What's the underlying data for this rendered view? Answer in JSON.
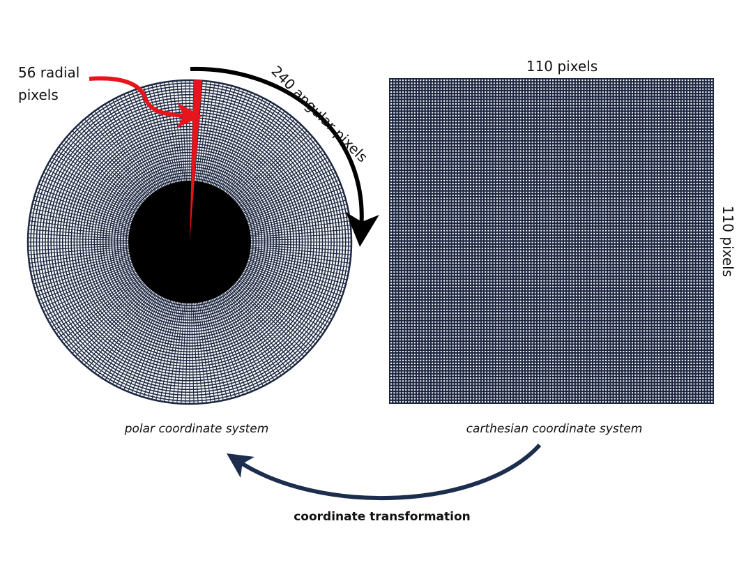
{
  "labels": {
    "radial_count": "56 radial",
    "radial_unit": "pixels",
    "angular": "240 angular pixels",
    "width": "110 pixels",
    "height": "110 pixels",
    "polar_caption": "polar coordinate system",
    "cartesian_caption": "carthesian coordinate system",
    "transform_caption": "coordinate transformation"
  },
  "polar_grid": {
    "radial_pixels": 56,
    "angular_pixels": 240
  },
  "cartesian_grid": {
    "columns": 110,
    "rows": 110
  },
  "colors": {
    "grid_line": "#1c2640",
    "grid_background": "#ffffff",
    "highlight": "#e8141b",
    "arrow_black": "#000000",
    "arrow_navy": "#1c2d4d"
  }
}
